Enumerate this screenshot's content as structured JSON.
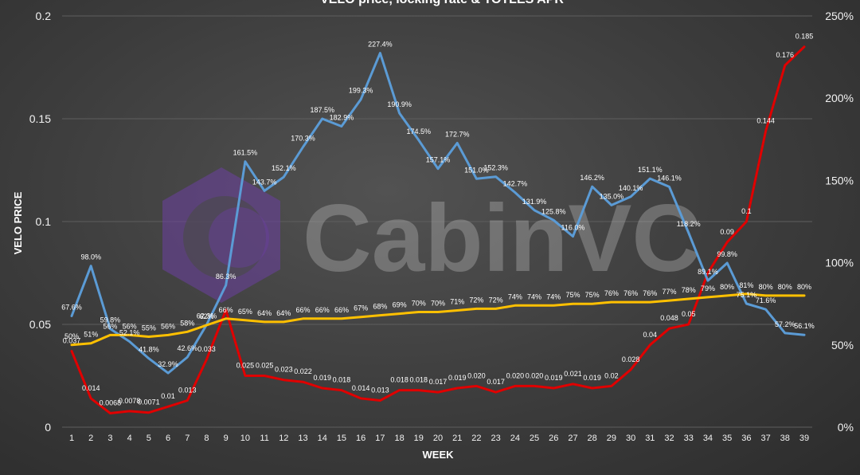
{
  "chart_data": {
    "type": "line",
    "title": "VELO price, locking rate & TOTLES APR",
    "xlabel": "WEEK",
    "ylabel": "VELO PRICE",
    "ylim": [
      0,
      0.2
    ],
    "y_ticks": [
      "0",
      "0.05",
      "0.1",
      "0.15",
      "0.2"
    ],
    "y2lim": [
      0,
      2.5
    ],
    "y2_ticks": [
      "0%",
      "50%",
      "100%",
      "150%",
      "200%",
      "250%"
    ],
    "grid": true,
    "x": [
      1,
      2,
      3,
      4,
      5,
      6,
      7,
      8,
      9,
      10,
      11,
      12,
      13,
      14,
      15,
      16,
      17,
      18,
      19,
      20,
      21,
      22,
      23,
      24,
      25,
      26,
      27,
      28,
      29,
      30,
      31,
      32,
      33,
      34,
      35,
      36,
      37,
      38,
      39
    ],
    "series": [
      {
        "name": "VELO price",
        "axis": "left",
        "color": "#e00000",
        "values": [
          0.037,
          0.014,
          0.0068,
          0.0078,
          0.0071,
          0.01,
          0.013,
          0.033,
          0.057,
          0.025,
          0.025,
          0.023,
          0.022,
          0.019,
          0.018,
          0.014,
          0.013,
          0.018,
          0.018,
          0.017,
          0.019,
          0.02,
          0.017,
          0.02,
          0.02,
          0.019,
          0.021,
          0.019,
          0.02,
          0.028,
          0.04,
          0.048,
          0.05,
          0.075,
          0.09,
          0.1,
          0.144,
          0.176,
          0.185
        ],
        "labels": [
          "0.037",
          "0.014",
          "0.0068",
          "0.0078",
          "0.0071",
          "0.01",
          "0.013",
          "0.033",
          "",
          "0.025",
          "0.025",
          "0.023",
          "0.022",
          "0.019",
          "0.018",
          "0.014",
          "0.013",
          "0.018",
          "0.018",
          "0.017",
          "0.019",
          "0.020",
          "0.017",
          "0.020",
          "0.020",
          "0.019",
          "0.021",
          "0.019",
          "0.02",
          "0.028",
          "0.04",
          "0.048",
          "0.05",
          "",
          "0.09",
          "0.1",
          "0.144",
          "0.176",
          "0.185"
        ]
      },
      {
        "name": "TOTLES APR",
        "axis": "right",
        "color": "#5b9bd5",
        "values": [
          0.676,
          0.98,
          0.598,
          0.521,
          0.418,
          0.329,
          0.426,
          0.623,
          0.863,
          1.615,
          1.437,
          1.521,
          1.703,
          1.875,
          1.829,
          1.993,
          2.274,
          1.909,
          1.745,
          1.571,
          1.727,
          1.51,
          1.523,
          1.427,
          1.319,
          1.258,
          1.16,
          1.462,
          1.35,
          1.401,
          1.511,
          1.461,
          1.182,
          0.891,
          0.998,
          0.751,
          0.716,
          0.572,
          0.561
        ],
        "labels": [
          "67.6%",
          "98.0%",
          "59.8%",
          "52.1%",
          "41.8%",
          "32.9%",
          "42.6%",
          "62.3%",
          "86.3%",
          "161.5%",
          "143.7%",
          "152.1%",
          "170.3%",
          "187.5%",
          "182.9%",
          "199.3%",
          "227.4%",
          "190.9%",
          "174.5%",
          "157.1%",
          "172.7%",
          "151.0%",
          "152.3%",
          "142.7%",
          "131.9%",
          "125.8%",
          "116.0%",
          "146.2%",
          "135.0%",
          "140.1%",
          "151.1%",
          "146.1%",
          "118.2%",
          "89.1%",
          "99.8%",
          "75.1%",
          "71.6%",
          "57.2%",
          "56.1%"
        ]
      },
      {
        "name": "Locking rate",
        "axis": "right",
        "color": "#ffc000",
        "values": [
          0.5,
          0.51,
          0.56,
          0.56,
          0.55,
          0.56,
          0.58,
          0.62,
          0.66,
          0.65,
          0.64,
          0.64,
          0.66,
          0.66,
          0.66,
          0.67,
          0.68,
          0.69,
          0.7,
          0.7,
          0.71,
          0.72,
          0.72,
          0.74,
          0.74,
          0.74,
          0.75,
          0.75,
          0.76,
          0.76,
          0.76,
          0.77,
          0.78,
          0.79,
          0.8,
          0.81,
          0.8,
          0.8,
          0.8
        ],
        "labels": [
          "50%",
          "51%",
          "56%",
          "56%",
          "55%",
          "56%",
          "58%",
          "62%",
          "66%",
          "65%",
          "64%",
          "64%",
          "66%",
          "66%",
          "66%",
          "67%",
          "68%",
          "69%",
          "70%",
          "70%",
          "71%",
          "72%",
          "72%",
          "74%",
          "74%",
          "74%",
          "75%",
          "75%",
          "76%",
          "76%",
          "76%",
          "77%",
          "78%",
          "79%",
          "80%",
          "81%",
          "80%",
          "80%",
          "80%"
        ]
      }
    ]
  },
  "watermark": {
    "text": "CabinVC",
    "logo_color": "#6b3fa0"
  }
}
